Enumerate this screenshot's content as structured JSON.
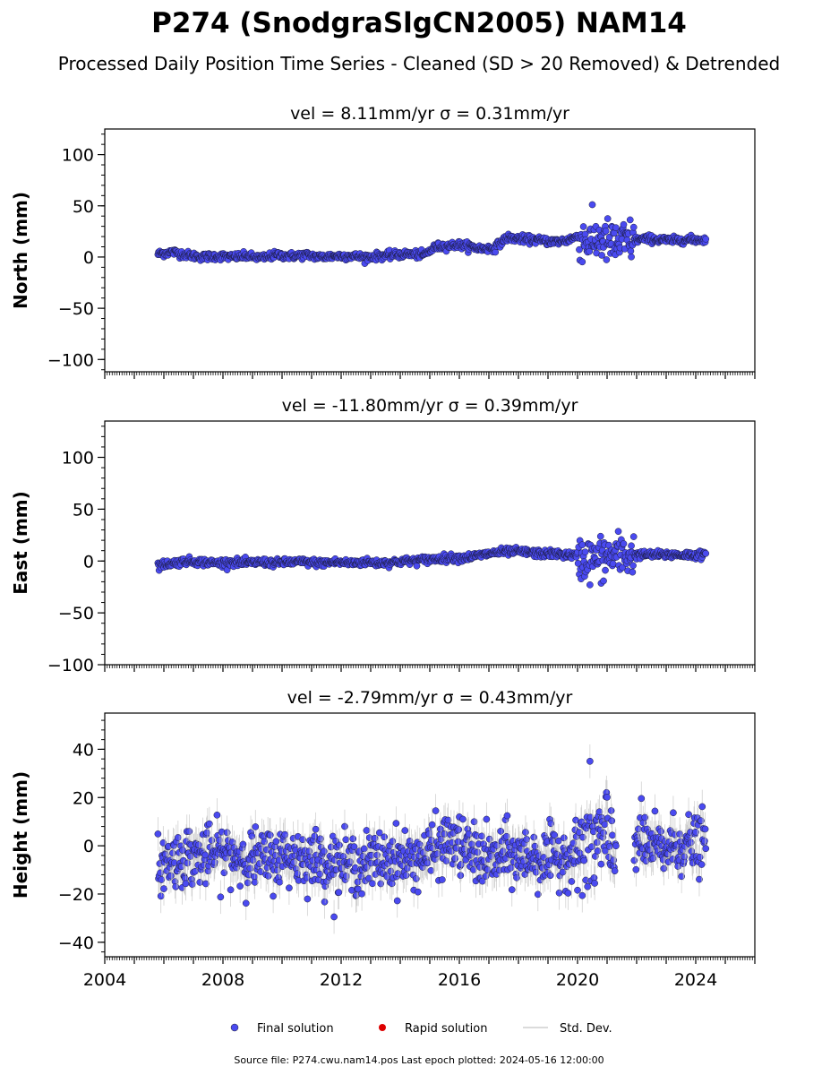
{
  "title": "P274 (SnodgraSlgCN2005) NAM14",
  "subtitle": "Processed Daily Position Time Series - Cleaned (SD > 20 Removed) & Detrended",
  "footer": "Source file: P274.cwu.nam14.pos  Last epoch plotted: 2024-05-16 12:00:00",
  "legend": {
    "final": "Final solution",
    "rapid": "Rapid solution",
    "std": "Std. Dev."
  },
  "colors": {
    "final": "#4a4af0",
    "rapid": "#dd0000",
    "std": "#bdbdbd",
    "axis": "#000000"
  },
  "chart_data": [
    {
      "type": "scatter",
      "panel": "north",
      "title": "vel = 8.11mm/yr   σ = 0.31mm/yr",
      "ylabel": "North (mm)",
      "xlim": [
        2004,
        2026
      ],
      "ylim": [
        -112,
        125
      ],
      "yticks": [
        100,
        50,
        0,
        -50,
        -100
      ],
      "xticks": [
        2004,
        2008,
        2012,
        2016,
        2020,
        2024
      ],
      "series": [
        {
          "name": "Final solution",
          "x": [
            2005.8,
            2006.3,
            2006.8,
            2007.3,
            2007.8,
            2008.3,
            2008.8,
            2009.3,
            2009.8,
            2010.3,
            2010.8,
            2011.3,
            2011.8,
            2012.3,
            2012.8,
            2013.3,
            2013.8,
            2014.3,
            2014.8,
            2015.2,
            2015.6,
            2016.0,
            2016.4,
            2016.8,
            2017.2,
            2017.6,
            2018.0,
            2018.4,
            2018.8,
            2019.2,
            2019.6,
            2020.0,
            2020.4,
            2020.8,
            2021.2,
            2021.6,
            2022.0,
            2022.4,
            2022.8,
            2023.2,
            2023.6,
            2024.0,
            2024.35
          ],
          "y": [
            3,
            5,
            2,
            0,
            1,
            0,
            1,
            -1,
            2,
            1,
            2,
            0,
            1,
            1,
            0,
            1,
            2,
            3,
            2,
            10,
            11,
            12,
            10,
            8,
            9,
            19,
            18,
            17,
            16,
            15,
            16,
            20,
            15,
            18,
            12,
            15,
            17,
            18,
            17,
            16,
            17,
            17,
            17
          ]
        }
      ]
    },
    {
      "type": "scatter",
      "panel": "east",
      "title": "vel = -11.80mm/yr   σ = 0.39mm/yr",
      "ylabel": "East (mm)",
      "xlim": [
        2004,
        2026
      ],
      "ylim": [
        -100,
        135
      ],
      "yticks": [
        100,
        50,
        0,
        -50,
        -100
      ],
      "xticks": [
        2004,
        2008,
        2012,
        2016,
        2020,
        2024
      ],
      "series": [
        {
          "name": "Final solution",
          "x": [
            2005.8,
            2006.3,
            2006.8,
            2007.3,
            2007.8,
            2008.3,
            2008.8,
            2009.3,
            2009.8,
            2010.3,
            2010.8,
            2011.3,
            2011.8,
            2012.3,
            2012.8,
            2013.3,
            2013.8,
            2014.3,
            2014.8,
            2015.2,
            2015.6,
            2016.0,
            2016.4,
            2016.8,
            2017.2,
            2017.6,
            2018.0,
            2018.4,
            2018.8,
            2019.2,
            2019.6,
            2020.0,
            2020.4,
            2020.8,
            2021.2,
            2021.6,
            2022.0,
            2022.4,
            2022.8,
            2023.2,
            2023.6,
            2024.0,
            2024.35
          ],
          "y": [
            -4,
            -2,
            0,
            -1,
            -2,
            -1,
            -2,
            -1,
            -2,
            -1,
            -1,
            -2,
            -1,
            -2,
            -1,
            -2,
            -1,
            0,
            1,
            2,
            3,
            3,
            4,
            6,
            8,
            9,
            9,
            8,
            7,
            7,
            6,
            5,
            1,
            2,
            5,
            6,
            6,
            6,
            6,
            6,
            6,
            6,
            6
          ]
        }
      ]
    },
    {
      "type": "scatter",
      "panel": "height",
      "title": "vel = -2.79mm/yr   σ = 0.43mm/yr",
      "ylabel": "Height (mm)",
      "xlim": [
        2004,
        2026
      ],
      "ylim": [
        -46,
        55
      ],
      "yticks": [
        40,
        20,
        0,
        -20,
        -40
      ],
      "xticks": [
        2004,
        2008,
        2012,
        2016,
        2020,
        2024
      ],
      "series": [
        {
          "name": "Final solution",
          "x": [
            2005.8,
            2006.3,
            2006.8,
            2007.3,
            2007.8,
            2008.3,
            2008.8,
            2009.3,
            2009.8,
            2010.3,
            2010.8,
            2011.3,
            2011.8,
            2012.3,
            2012.8,
            2013.3,
            2013.8,
            2014.3,
            2014.8,
            2015.2,
            2015.6,
            2016.0,
            2016.4,
            2016.8,
            2017.2,
            2017.6,
            2018.0,
            2018.4,
            2018.8,
            2019.2,
            2019.6,
            2020.0,
            2020.4,
            2020.8,
            2021.2,
            2022.0,
            2022.4,
            2022.8,
            2023.2,
            2023.6,
            2024.0,
            2024.35
          ],
          "y": [
            -8,
            -6,
            -4,
            -5,
            -3,
            -4,
            -5,
            -6,
            -5,
            -4,
            -5,
            -6,
            -7,
            -8,
            -7,
            -6,
            -5,
            -6,
            -4,
            -2,
            2,
            0,
            -3,
            -5,
            -6,
            -3,
            -5,
            -4,
            -6,
            -5,
            -4,
            -3,
            0,
            2,
            -2,
            3,
            0,
            -2,
            0,
            1,
            0,
            2
          ]
        }
      ]
    }
  ]
}
